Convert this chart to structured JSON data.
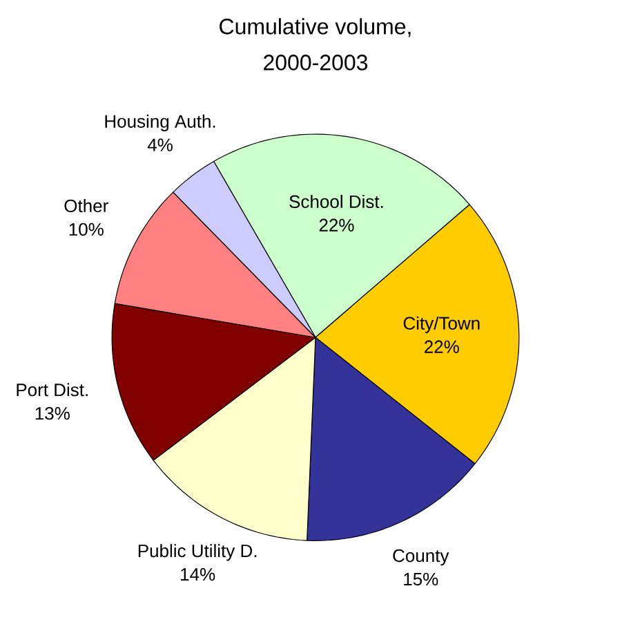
{
  "chart_data": {
    "type": "pie",
    "title": "Cumulative volume, 2000-2003",
    "categories": [
      "School Dist.",
      "City/Town",
      "County",
      "Public Utility D.",
      "Port Dist.",
      "Other",
      "Housing Auth."
    ],
    "values": [
      22,
      22,
      15,
      14,
      13,
      10,
      4
    ],
    "value_labels": [
      "22%",
      "22%",
      "15%",
      "14%",
      "13%",
      "10%",
      "4%"
    ],
    "colors": [
      "#ccffcc",
      "#ffcc00",
      "#333399",
      "#ffffcc",
      "#800000",
      "#ff8080",
      "#ccccff"
    ]
  }
}
